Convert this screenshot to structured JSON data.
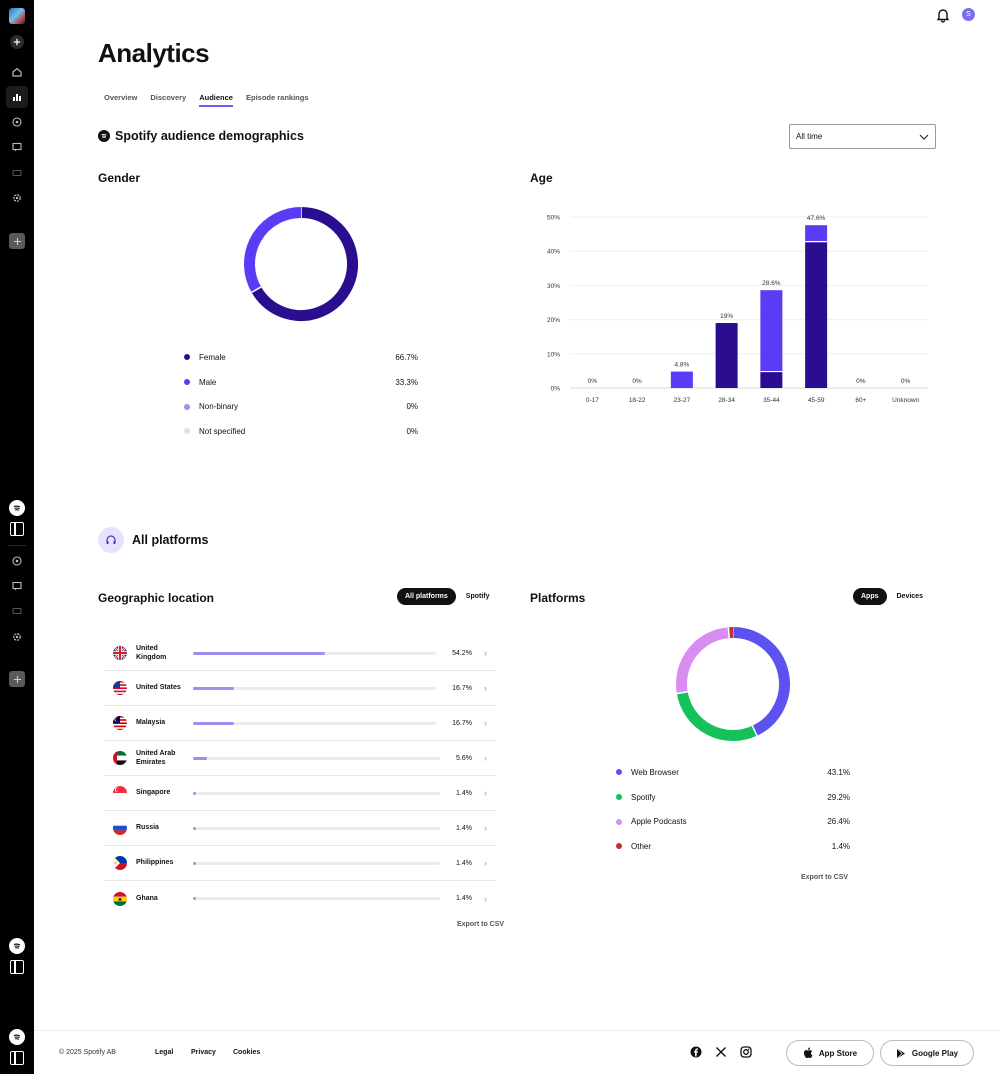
{
  "header": {
    "title": "Analytics",
    "user_initial": "S"
  },
  "tabs": [
    {
      "label": "Overview",
      "active": false
    },
    {
      "label": "Discovery",
      "active": false
    },
    {
      "label": "Audience",
      "active": true
    },
    {
      "label": "Episode rankings",
      "active": false
    }
  ],
  "demographics": {
    "title": "Spotify audience demographics",
    "time_filter": "All time"
  },
  "gender": {
    "title": "Gender",
    "items": [
      {
        "label": "Female",
        "value": "66.7%",
        "percent": 66.7,
        "color": "#2a0e8f"
      },
      {
        "label": "Male",
        "value": "33.3%",
        "percent": 33.3,
        "color": "#5a3cf7"
      },
      {
        "label": "Non-binary",
        "value": "0%",
        "percent": 0,
        "color": "#9d90f2"
      },
      {
        "label": "Not specified",
        "value": "0%",
        "percent": 0,
        "color": "#e1dcfa"
      }
    ]
  },
  "chart_data": {
    "type": "bar",
    "title": "Age",
    "categories": [
      "0-17",
      "18-22",
      "23-27",
      "28-34",
      "35-44",
      "45-59",
      "60+",
      "Unknown"
    ],
    "totals": [
      0,
      0,
      4.8,
      19,
      28.6,
      47.6,
      0,
      0
    ],
    "total_labels": [
      "0%",
      "0%",
      "4.8%",
      "19%",
      "28.6%",
      "47.6%",
      "0%",
      "0%"
    ],
    "series": [
      {
        "values": [
          0,
          0,
          0,
          19,
          4.8,
          42.8,
          0,
          0
        ],
        "color": "#2a0e8f"
      },
      {
        "values": [
          0,
          0,
          4.8,
          0,
          23.8,
          4.8,
          0,
          0
        ],
        "color": "#5a3cf7"
      }
    ],
    "yticks": [
      "0%",
      "10%",
      "20%",
      "30%",
      "40%",
      "50%"
    ],
    "ylim": [
      0,
      50
    ]
  },
  "all_platforms": {
    "title": "All platforms"
  },
  "geo": {
    "title": "Geographic location",
    "filters": [
      {
        "label": "All platforms",
        "active": true
      },
      {
        "label": "Spotify",
        "active": false
      }
    ],
    "rows": [
      {
        "name": "United Kingdom",
        "value": "54.2%",
        "percent": 54.2,
        "flag": "uk"
      },
      {
        "name": "United States",
        "value": "16.7%",
        "percent": 16.7,
        "flag": "us"
      },
      {
        "name": "Malaysia",
        "value": "16.7%",
        "percent": 16.7,
        "flag": "my"
      },
      {
        "name": "United Arab Emirates",
        "value": "5.6%",
        "percent": 5.6,
        "flag": "ae"
      },
      {
        "name": "Singapore",
        "value": "1.4%",
        "percent": 1.4,
        "flag": "sg"
      },
      {
        "name": "Russia",
        "value": "1.4%",
        "percent": 1.4,
        "flag": "ru"
      },
      {
        "name": "Philippines",
        "value": "1.4%",
        "percent": 1.4,
        "flag": "ph"
      },
      {
        "name": "Ghana",
        "value": "1.4%",
        "percent": 1.4,
        "flag": "gh"
      }
    ],
    "export_label": "Export to CSV"
  },
  "platforms": {
    "title": "Platforms",
    "filters": [
      {
        "label": "Apps",
        "active": true
      },
      {
        "label": "Devices",
        "active": false
      }
    ],
    "items": [
      {
        "label": "Web Browser",
        "value": "43.1%",
        "percent": 43.1,
        "color": "#5b52ef"
      },
      {
        "label": "Spotify",
        "value": "29.2%",
        "percent": 29.2,
        "color": "#14c15b"
      },
      {
        "label": "Apple Podcasts",
        "value": "26.4%",
        "percent": 26.4,
        "color": "#d98cf2"
      },
      {
        "label": "Other",
        "value": "1.4%",
        "percent": 1.4,
        "color": "#c2322e"
      }
    ],
    "export_label": "Export to CSV"
  },
  "footer": {
    "copyright": "© 2025 Spotify AB",
    "links": [
      "Legal",
      "Privacy",
      "Cookies"
    ],
    "app_store": "App Store",
    "google_play": "Google Play"
  }
}
